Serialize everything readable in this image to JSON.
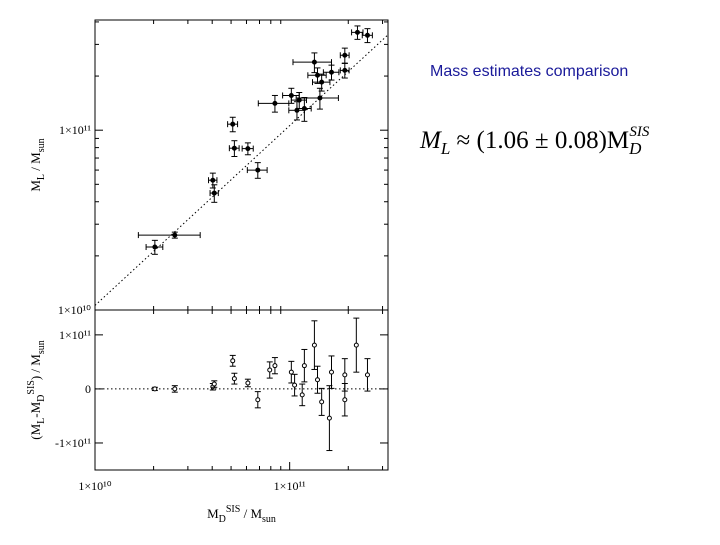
{
  "slide": {
    "title": "Mass estimates comparison",
    "formula": {
      "m": "M",
      "l_sub": "L",
      "approx": " ≈ (",
      "pm": " ± ",
      "err": 0.08,
      "close": ")M",
      "d_sub": "D",
      "sis_sup": "SIS"
    }
  },
  "chart_data": [
    {
      "type": "scatter",
      "log_x": true,
      "log_y": true,
      "fit_slope": 1.06,
      "xlim": [
        10000000000.0,
        320000000000.0
      ],
      "ylim": [
        10000000000.0,
        410000000000.0
      ],
      "yticks": [
        {
          "value": 10000000000.0,
          "label": "1×10¹⁰"
        },
        {
          "value": 100000000000.0,
          "label": "1×10¹¹"
        }
      ],
      "y_label": [
        {
          "t": "M"
        },
        {
          "t": "L",
          "sub": true
        },
        {
          "t": " / M"
        },
        {
          "t": "sun",
          "sub": true
        }
      ],
      "x": [
        20300000000.0,
        25700000000.0,
        40300000000.0,
        41000000000.0,
        51000000000.0,
        52000000000.0,
        61000000000.0,
        68600000000.0,
        84000000000.0,
        102000000000.0,
        109000000000.0,
        119000000000.0,
        112000000000.0,
        134000000000.0,
        139000000000.0,
        146000000000.0,
        143000000000.0,
        164000000000.0,
        192000000000.0,
        192000000000.0,
        223000000000.0,
        251000000000.0
      ],
      "values": [
        22400000000.0,
        26100000000.0,
        52700000000.0,
        44700000000.0,
        108000000000.0,
        79400000000.0,
        79000000000.0,
        60000000000.0,
        141000000000.0,
        156000000000.0,
        129000000000.0,
        132000000000.0,
        147000000000.0,
        239000000000.0,
        202000000000.0,
        185000000000.0,
        151000000000.0,
        210000000000.0,
        215000000000.0,
        261000000000.0,
        350000000000.0,
        337000000000.0
      ],
      "xerr": [
        2000000000.0,
        9000000000.0,
        2000000000.0,
        2000000000.0,
        3000000000.0,
        3000000000.0,
        4000000000.0,
        8000000000.0,
        15000000000.0,
        10000000000.0,
        10000000000.0,
        10000000000.0,
        10000000000.0,
        30000000000.0,
        15000000000.0,
        15000000000.0,
        35000000000.0,
        15000000000.0,
        10000000000.0,
        10000000000.0,
        15000000000.0,
        15000000000.0
      ],
      "yerr": [
        2000000000.0,
        1000000000.0,
        5000000000.0,
        5000000000.0,
        10000000000.0,
        8000000000.0,
        6000000000.0,
        6000000000.0,
        15000000000.0,
        15000000000.0,
        15000000000.0,
        20000000000.0,
        15000000000.0,
        30000000000.0,
        20000000000.0,
        20000000000.0,
        20000000000.0,
        20000000000.0,
        20000000000.0,
        25000000000.0,
        30000000000.0,
        30000000000.0
      ]
    },
    {
      "type": "scatter",
      "log_x": true,
      "log_y": false,
      "zero_line": true,
      "xlim": [
        10000000000.0,
        320000000000.0
      ],
      "ylim": [
        -150000000000.0,
        146000000000.0
      ],
      "xticks": [
        {
          "value": 10000000000.0,
          "label": "1×10¹⁰"
        },
        {
          "value": 100000000000.0,
          "label": "1×10¹¹"
        }
      ],
      "yticks": [
        {
          "value": -100000000000.0,
          "label": "-1×10¹¹"
        },
        0,
        {
          "value": 100000000000.0,
          "label": "1×10¹¹"
        }
      ],
      "y_label": [
        {
          "t": "(M"
        },
        {
          "t": "L",
          "sub": true
        },
        {
          "t": "-M"
        },
        {
          "t": "D",
          "sub": true
        },
        {
          "t": "SIS",
          "sup": true
        },
        {
          "t": ") / M"
        },
        {
          "t": "sun",
          "sub": true
        }
      ],
      "x_label": [
        {
          "t": "M"
        },
        {
          "t": "D",
          "sub": true
        },
        {
          "t": "SIS",
          "sup": true
        },
        {
          "t": " / M"
        },
        {
          "t": "sun",
          "sub": true
        }
      ],
      "x": [
        20300000000.0,
        25700000000.0,
        40300000000.0,
        41000000000.0,
        51000000000.0,
        52000000000.0,
        61000000000.0,
        68600000000.0,
        79000000000.0,
        84000000000.0,
        102000000000.0,
        106000000000.0,
        116000000000.0,
        119000000000.0,
        134000000000.0,
        139000000000.0,
        146000000000.0,
        164000000000.0,
        160000000000.0,
        192000000000.0,
        192000000000.0,
        220000000000.0,
        251000000000.0
      ],
      "values": [
        0,
        0,
        4000000000.0,
        9000000000.0,
        52000000000.0,
        19000000000.0,
        11000000000.0,
        -20000000000.0,
        35000000000.0,
        43000000000.0,
        31000000000.0,
        7000000000.0,
        -11000000000.0,
        43000000000.0,
        81000000000.0,
        17000000000.0,
        -24000000000.0,
        31000000000.0,
        -54000000000.0,
        26000000000.0,
        -20000000000.0,
        81000000000.0,
        26000000000.0
      ],
      "yerr": [
        3000000000.0,
        6000000000.0,
        6000000000.0,
        6000000000.0,
        10000000000.0,
        10000000000.0,
        7000000000.0,
        15000000000.0,
        15000000000.0,
        15000000000.0,
        20000000000.0,
        20000000000.0,
        20000000000.0,
        30000000000.0,
        45000000000.0,
        25000000000.0,
        25000000000.0,
        30000000000.0,
        60000000000.0,
        30000000000.0,
        30000000000.0,
        50000000000.0,
        30000000000.0
      ]
    }
  ]
}
